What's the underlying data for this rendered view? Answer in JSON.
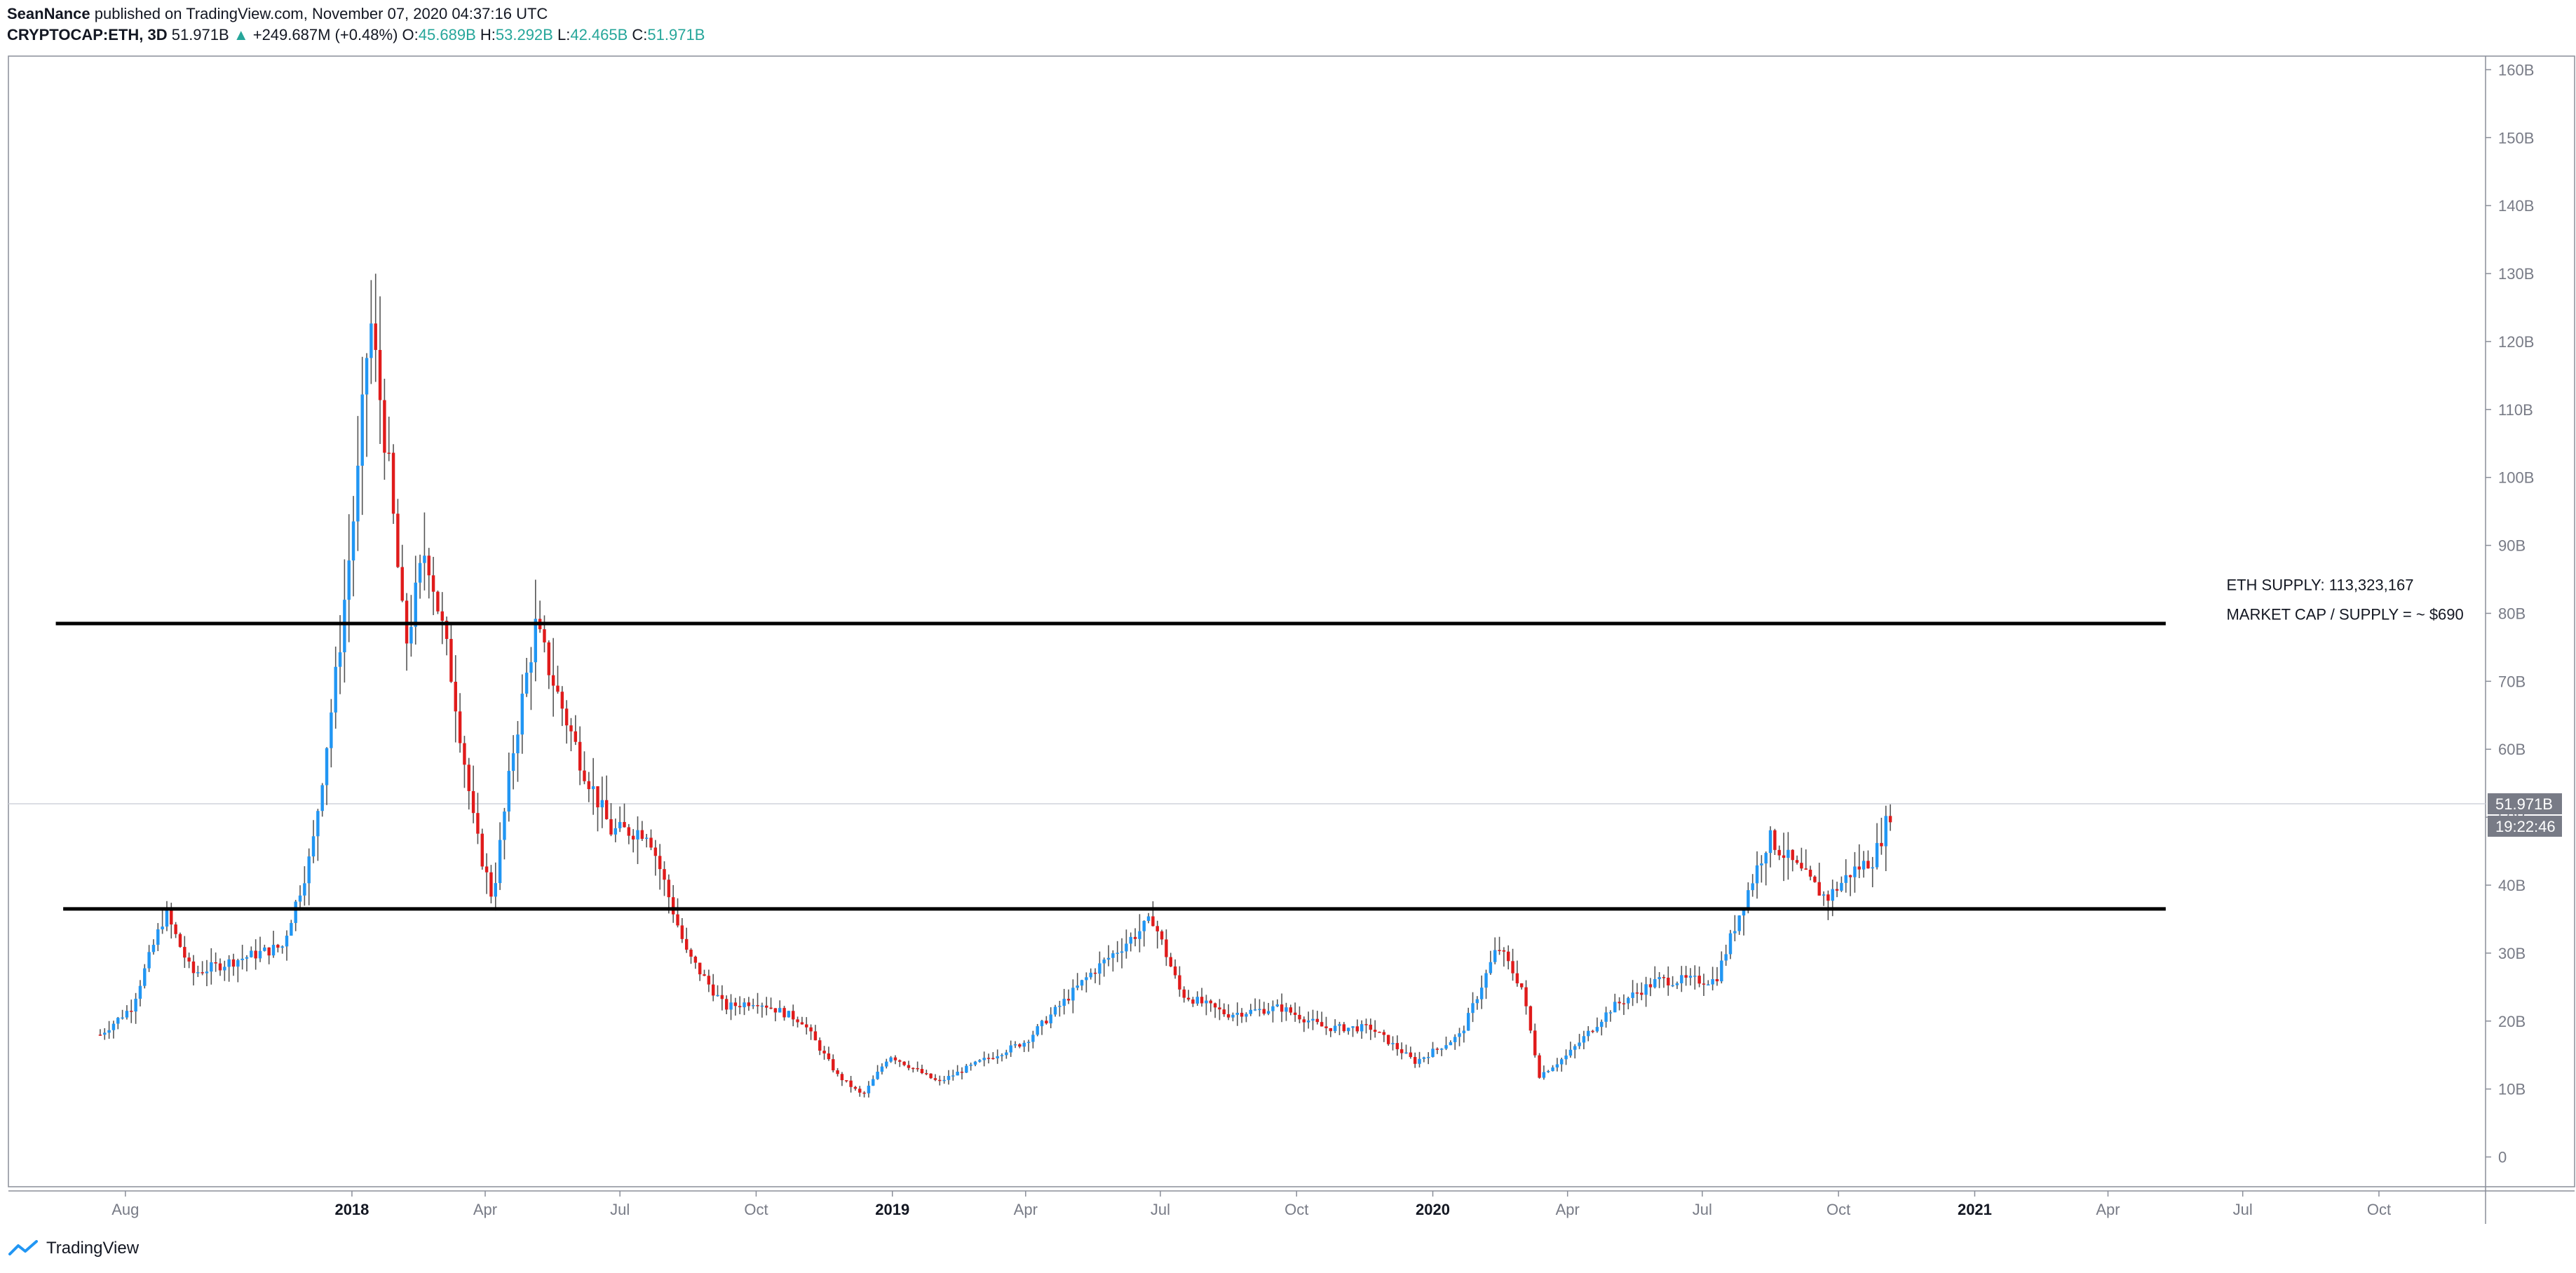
{
  "header": {
    "author": "SeanNance",
    "published_text": "published on TradingView.com, November 07, 2020 04:37:16 UTC"
  },
  "ohlc": {
    "symbol": "CRYPTOCAP:ETH, 3D",
    "last": "51.971B",
    "arrow": "▲",
    "change": "+249.687M (+0.48%)",
    "o_label": "O:",
    "o": "45.689B",
    "h_label": "H:",
    "h": "53.292B",
    "l_label": "L:",
    "l": "42.465B",
    "c_label": "C:",
    "c": "51.971B"
  },
  "footer": {
    "brand": "TradingView"
  },
  "colors": {
    "up": "#2196f3",
    "down": "#e01b1b",
    "wick": "#555555",
    "axis": "#787b86",
    "price_badge": "#787b86"
  },
  "chart_data": {
    "type": "candlestick",
    "y_unit": "B",
    "ylim": [
      -5,
      162
    ],
    "y_ticks": [
      "0",
      "10B",
      "20B",
      "30B",
      "40B",
      "50B",
      "60B",
      "70B",
      "80B",
      "90B",
      "100B",
      "110B",
      "120B",
      "130B",
      "140B",
      "150B",
      "160B"
    ],
    "y_tick_values": [
      0,
      10,
      20,
      30,
      40,
      50,
      60,
      70,
      80,
      90,
      100,
      110,
      120,
      130,
      140,
      150,
      160
    ],
    "x_range": [
      "2017-05-14",
      "2021-12-12"
    ],
    "x_ticks": [
      {
        "label": "Aug",
        "date": "2017-08-01",
        "bold": false
      },
      {
        "label": "2018",
        "date": "2018-01-01",
        "bold": true
      },
      {
        "label": "Apr",
        "date": "2018-04-01",
        "bold": false
      },
      {
        "label": "Jul",
        "date": "2018-07-01",
        "bold": false
      },
      {
        "label": "Oct",
        "date": "2018-10-01",
        "bold": false
      },
      {
        "label": "2019",
        "date": "2019-01-01",
        "bold": true
      },
      {
        "label": "Apr",
        "date": "2019-04-01",
        "bold": false
      },
      {
        "label": "Jul",
        "date": "2019-07-01",
        "bold": false
      },
      {
        "label": "Oct",
        "date": "2019-10-01",
        "bold": false
      },
      {
        "label": "2020",
        "date": "2020-01-01",
        "bold": true
      },
      {
        "label": "Apr",
        "date": "2020-04-01",
        "bold": false
      },
      {
        "label": "Jul",
        "date": "2020-07-01",
        "bold": false
      },
      {
        "label": "Oct",
        "date": "2020-10-01",
        "bold": false
      },
      {
        "label": "2021",
        "date": "2021-01-01",
        "bold": true
      },
      {
        "label": "Apr",
        "date": "2021-04-01",
        "bold": false
      },
      {
        "label": "Jul",
        "date": "2021-07-01",
        "bold": false
      },
      {
        "label": "Oct",
        "date": "2021-10-01",
        "bold": false
      }
    ],
    "price_path": [
      {
        "date": "2017-07-15",
        "value": 18
      },
      {
        "date": "2017-08-05",
        "value": 22
      },
      {
        "date": "2017-08-28",
        "value": 36
      },
      {
        "date": "2017-09-15",
        "value": 27
      },
      {
        "date": "2017-10-15",
        "value": 29
      },
      {
        "date": "2017-11-15",
        "value": 31
      },
      {
        "date": "2017-12-05",
        "value": 45
      },
      {
        "date": "2017-12-22",
        "value": 72
      },
      {
        "date": "2018-01-05",
        "value": 100
      },
      {
        "date": "2018-01-13",
        "value": 124
      },
      {
        "date": "2018-01-25",
        "value": 103
      },
      {
        "date": "2018-02-06",
        "value": 75
      },
      {
        "date": "2018-02-20",
        "value": 90
      },
      {
        "date": "2018-03-10",
        "value": 70
      },
      {
        "date": "2018-03-25",
        "value": 48
      },
      {
        "date": "2018-04-06",
        "value": 38
      },
      {
        "date": "2018-04-20",
        "value": 60
      },
      {
        "date": "2018-05-05",
        "value": 78
      },
      {
        "date": "2018-05-20",
        "value": 68
      },
      {
        "date": "2018-06-05",
        "value": 58
      },
      {
        "date": "2018-06-25",
        "value": 48
      },
      {
        "date": "2018-07-20",
        "value": 48
      },
      {
        "date": "2018-08-15",
        "value": 30
      },
      {
        "date": "2018-09-10",
        "value": 22
      },
      {
        "date": "2018-10-01",
        "value": 23
      },
      {
        "date": "2018-11-01",
        "value": 20
      },
      {
        "date": "2018-11-25",
        "value": 12
      },
      {
        "date": "2018-12-12",
        "value": 9
      },
      {
        "date": "2018-12-30",
        "value": 15
      },
      {
        "date": "2019-02-01",
        "value": 11
      },
      {
        "date": "2019-03-01",
        "value": 14
      },
      {
        "date": "2019-04-01",
        "value": 17
      },
      {
        "date": "2019-05-15",
        "value": 27
      },
      {
        "date": "2019-06-26",
        "value": 35
      },
      {
        "date": "2019-07-15",
        "value": 24
      },
      {
        "date": "2019-08-15",
        "value": 21
      },
      {
        "date": "2019-09-20",
        "value": 22
      },
      {
        "date": "2019-10-20",
        "value": 19
      },
      {
        "date": "2019-11-20",
        "value": 19
      },
      {
        "date": "2019-12-20",
        "value": 14
      },
      {
        "date": "2020-01-20",
        "value": 18
      },
      {
        "date": "2020-02-14",
        "value": 31
      },
      {
        "date": "2020-03-01",
        "value": 25
      },
      {
        "date": "2020-03-13",
        "value": 12
      },
      {
        "date": "2020-04-01",
        "value": 15
      },
      {
        "date": "2020-05-01",
        "value": 22
      },
      {
        "date": "2020-06-01",
        "value": 26
      },
      {
        "date": "2020-07-10",
        "value": 26
      },
      {
        "date": "2020-07-28",
        "value": 37
      },
      {
        "date": "2020-08-15",
        "value": 47
      },
      {
        "date": "2020-09-05",
        "value": 42
      },
      {
        "date": "2020-09-23",
        "value": 38
      },
      {
        "date": "2020-10-10",
        "value": 42
      },
      {
        "date": "2020-10-25",
        "value": 44
      },
      {
        "date": "2020-11-07",
        "value": 52
      }
    ],
    "horizontal_lines": [
      {
        "value": 78.5,
        "from": "2017-06-15",
        "to": "2021-05-10"
      },
      {
        "value": 36.5,
        "from": "2017-06-20",
        "to": "2021-05-10"
      }
    ],
    "annotations": [
      "ETH SUPPLY: 113,323,167",
      "MARKET CAP / SUPPLY = ~ $690"
    ],
    "annotation_anchor": {
      "date": "2021-06-20",
      "value": 80.5
    },
    "last_price": 51.971,
    "last_price_label": "51.971B",
    "countdown": "19:22:46"
  }
}
